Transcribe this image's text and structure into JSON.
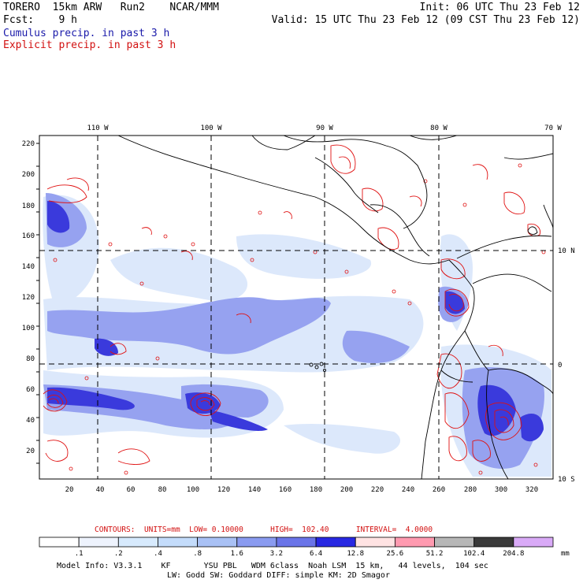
{
  "header": {
    "model": "TORERO  15km ARW   Run2    NCAR/MMM",
    "init": "Init: 06 UTC Thu 23 Feb 12",
    "fcst": "Fcst:    9 h",
    "valid": "Valid: 15 UTC Thu 23 Feb 12 (09 CST Thu 23 Feb 12)",
    "cumulus": "Cumulus precip. in past 3 h",
    "explicit": "Explicit precip. in past 3 h"
  },
  "map": {
    "lon_labels": [
      "110 W",
      "100 W",
      "90 W",
      "80 W",
      "70 W"
    ],
    "lat_labels": [
      "10 N",
      "0",
      "10 S"
    ],
    "y_ticks": [
      "220",
      "200",
      "180",
      "160",
      "140",
      "120",
      "100",
      "80",
      "60",
      "40",
      "20"
    ],
    "x_ticks": [
      "20",
      "40",
      "60",
      "80",
      "100",
      "120",
      "140",
      "160",
      "180",
      "200",
      "220",
      "240",
      "260",
      "280",
      "300",
      "320"
    ],
    "colors": {
      "explicit_contour": "#e01010",
      "light": "#dde9fb",
      "medium": "#8f9cf0",
      "heavy": "#3434d8",
      "coast": "#000000"
    }
  },
  "contours_line": {
    "label": "CONTOURS:",
    "units": "UNITS=mm",
    "low": "LOW= 0.10000",
    "high": "HIGH=  102.40",
    "interval": "INTERVAL=  4.0000"
  },
  "colorbar": {
    "colors": [
      "#ffffff",
      "#eef3fd",
      "#d7eafd",
      "#c4dcfb",
      "#a9c1f5",
      "#8a9bf0",
      "#6a74e8",
      "#2828e2",
      "#ffe3e3",
      "#ff9ab0",
      "#b7b7b7",
      "#3a3a3a",
      "#d9aaf7"
    ],
    "labels": [
      ".1",
      ".2",
      ".4",
      ".8",
      "1.6",
      "3.2",
      "6.4",
      "12.8",
      "25.6",
      "51.2",
      "102.4",
      "204.8"
    ],
    "unit": "mm"
  },
  "model_info": {
    "line1": "Model Info: V3.3.1    KF       YSU PBL   WDM 6class  Noah LSM  15 km,   44 levels,  104 sec",
    "line2": "LW: Godd SW: Goddard DIFF: simple KM: 2D Smagor"
  }
}
